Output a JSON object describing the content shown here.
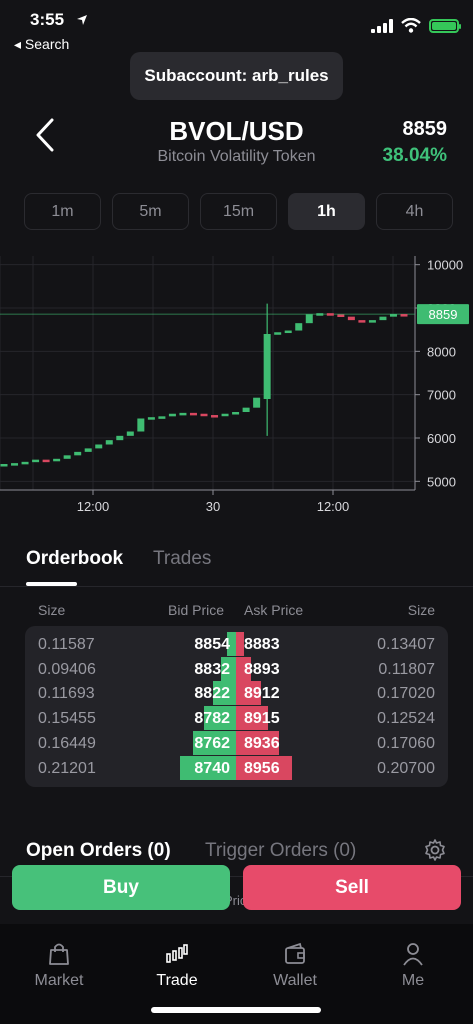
{
  "status": {
    "time": "3:55",
    "back_label": "◂ Search"
  },
  "subaccount": "Subaccount: arb_rules",
  "header": {
    "pair": "BVOL/USD",
    "name": "Bitcoin Volatility Token",
    "price": "8859",
    "change": "38.04%"
  },
  "timeframes": [
    "1m",
    "5m",
    "15m",
    "1h",
    "4h"
  ],
  "active_timeframe": "1h",
  "chart_data": {
    "type": "candlestick",
    "y_ticks": [
      "10000",
      "9000",
      "8000",
      "7000",
      "6000",
      "5000"
    ],
    "ylim": [
      4800,
      10200
    ],
    "x_ticks": [
      "12:00",
      "30",
      "12:00"
    ],
    "last_price_label": "8859",
    "candles": [
      {
        "o": 5350,
        "c": 5400
      },
      {
        "o": 5400,
        "c": 5420
      },
      {
        "o": 5420,
        "c": 5450
      },
      {
        "o": 5450,
        "c": 5500
      },
      {
        "o": 5500,
        "c": 5480
      },
      {
        "o": 5480,
        "c": 5520
      },
      {
        "o": 5520,
        "c": 5600
      },
      {
        "o": 5600,
        "c": 5680
      },
      {
        "o": 5680,
        "c": 5760
      },
      {
        "o": 5760,
        "c": 5850
      },
      {
        "o": 5850,
        "c": 5950
      },
      {
        "o": 5950,
        "c": 6050
      },
      {
        "o": 6050,
        "c": 6150
      },
      {
        "o": 6150,
        "c": 6450
      },
      {
        "o": 6450,
        "c": 6480
      },
      {
        "o": 6480,
        "c": 6500
      },
      {
        "o": 6500,
        "c": 6560
      },
      {
        "o": 6560,
        "c": 6580
      },
      {
        "o": 6580,
        "c": 6560
      },
      {
        "o": 6560,
        "c": 6530
      },
      {
        "o": 6530,
        "c": 6520
      },
      {
        "o": 6520,
        "c": 6560
      },
      {
        "o": 6560,
        "c": 6600
      },
      {
        "o": 6600,
        "c": 6700
      },
      {
        "o": 6700,
        "c": 6930
      },
      {
        "o": 6900,
        "c": 8400,
        "h": 9100,
        "l": 6050
      },
      {
        "o": 8420,
        "c": 8440
      },
      {
        "o": 8440,
        "c": 8480
      },
      {
        "o": 8480,
        "c": 8650
      },
      {
        "o": 8650,
        "c": 8850
      },
      {
        "o": 8850,
        "c": 8880
      },
      {
        "o": 8880,
        "c": 8850
      },
      {
        "o": 8850,
        "c": 8800
      },
      {
        "o": 8800,
        "c": 8720
      },
      {
        "o": 8720,
        "c": 8700
      },
      {
        "o": 8700,
        "c": 8720
      },
      {
        "o": 8720,
        "c": 8800
      },
      {
        "o": 8800,
        "c": 8860
      },
      {
        "o": 8860,
        "c": 8859
      }
    ]
  },
  "orderbook": {
    "tabs": [
      "Orderbook",
      "Trades"
    ],
    "headers": {
      "size_left": "Size",
      "bid": "Bid Price",
      "ask": "Ask Price",
      "size_right": "Size"
    },
    "rows": [
      {
        "bid_size": "0.11587",
        "bid": "8854",
        "ask": "8883",
        "ask_size": "0.13407",
        "bid_depth": 0.13,
        "ask_depth": 0.12
      },
      {
        "bid_size": "0.09406",
        "bid": "8832",
        "ask": "8893",
        "ask_size": "0.11807",
        "bid_depth": 0.22,
        "ask_depth": 0.22
      },
      {
        "bid_size": "0.11693",
        "bid": "8822",
        "ask": "8912",
        "ask_size": "0.17020",
        "bid_depth": 0.33,
        "ask_depth": 0.36
      },
      {
        "bid_size": "0.15455",
        "bid": "8782",
        "ask": "8915",
        "ask_size": "0.12524",
        "bid_depth": 0.46,
        "ask_depth": 0.46
      },
      {
        "bid_size": "0.16449",
        "bid": "8762",
        "ask": "8936",
        "ask_size": "0.17060",
        "bid_depth": 0.61,
        "ask_depth": 0.62
      },
      {
        "bid_size": "0.21201",
        "bid": "8740",
        "ask": "8956",
        "ask_size": "0.20700",
        "bid_depth": 0.8,
        "ask_depth": 0.8
      }
    ]
  },
  "orders": {
    "open_label": "Open Orders (0)",
    "trigger_label": "Trigger Orders (0)",
    "partial_hidden": "Pric"
  },
  "actions": {
    "buy": "Buy",
    "sell": "Sell"
  },
  "nav": [
    {
      "label": "Market",
      "icon": "bag-icon"
    },
    {
      "label": "Trade",
      "icon": "candles-icon"
    },
    {
      "label": "Wallet",
      "icon": "wallet-icon"
    },
    {
      "label": "Me",
      "icon": "person-icon"
    }
  ],
  "active_nav": "Trade",
  "colors": {
    "up": "#3fbc72",
    "down": "#d94760",
    "price_tag": "#3fbc72"
  }
}
